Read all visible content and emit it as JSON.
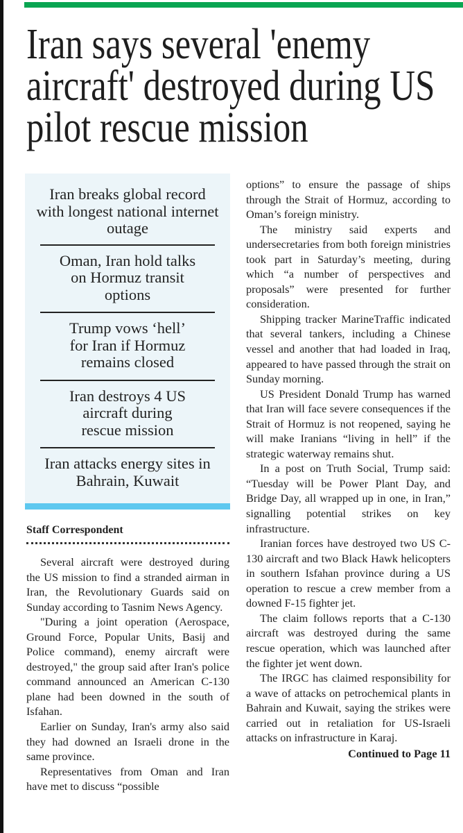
{
  "headline": "Iran says several 'enemy aircraft' destroyed during US pilot rescue mission",
  "highlights": [
    "Iran breaks global record with longest national internet outage",
    "Oman, Iran hold talks on Hormuz transit options",
    "Trump vows ‘hell’ for Iran if Hormuz remains closed",
    "Iran destroys 4 US aircraft during rescue mission",
    "Iran attacks energy sites in Bahrain, Kuwait"
  ],
  "byline": "Staff Correspondent",
  "colors": {
    "top_bar": "#0aa552",
    "highlight_bg": "#ecf5f9",
    "highlight_bar": "#5ec8ef"
  },
  "column1": [
    "Several aircraft were destroyed during the US mission to find a stranded airman in Iran, the Revolutionary Guards said on Sunday according to Tasnim News Agency.",
    "\"During a joint operation (Aerospace, Ground Force, Popular Units, Basij and Police command), enemy aircraft were destroyed,\" the group said after Iran's police command announced an American C-130 plane had been downed in the south of Isfahan.",
    "Earlier on Sunday, Iran's army also said they had downed an Israeli drone in the same province.",
    "Representatives from Oman and Iran have met to discuss “possible"
  ],
  "column2_continuation": "options” to ensure the passage of ships through the Strait of Hormuz, according to Oman’s foreign ministry.",
  "column2": [
    "The ministry said experts and undersecretaries from both foreign ministries took part in Saturday’s meeting, during which “a number of perspectives and proposals” were presented for further consideration.",
    "Shipping tracker MarineTraffic indicated that several tankers, including a Chinese vessel and another that had loaded in Iraq, appeared to have passed through the strait on Sunday morning.",
    "US President Donald Trump has warned that Iran will face severe consequences if the Strait of Hormuz is not reopened, saying he will make Iranians “living in hell” if the strategic waterway remains shut.",
    "In a post on Truth Social, Trump said: “Tuesday will be Power Plant Day, and Bridge Day, all wrapped up in one, in Iran,” signalling potential strikes on key infrastructure.",
    "Iranian forces have destroyed two US C-130 aircraft and two Black Hawk helicopters in southern Isfahan province during a US operation to rescue a crew member from a downed F-15 fighter jet.",
    "The claim follows reports that a C-130 aircraft was destroyed during the same rescue operation, which was launched after the fighter jet went down.",
    "The IRGC has claimed responsibility for a wave of attacks on petrochemical plants in Bahrain and Kuwait, saying the strikes were carried out in retaliation for US-Israeli attacks on infrastructure in Karaj."
  ],
  "continued": "Continued to Page 11"
}
